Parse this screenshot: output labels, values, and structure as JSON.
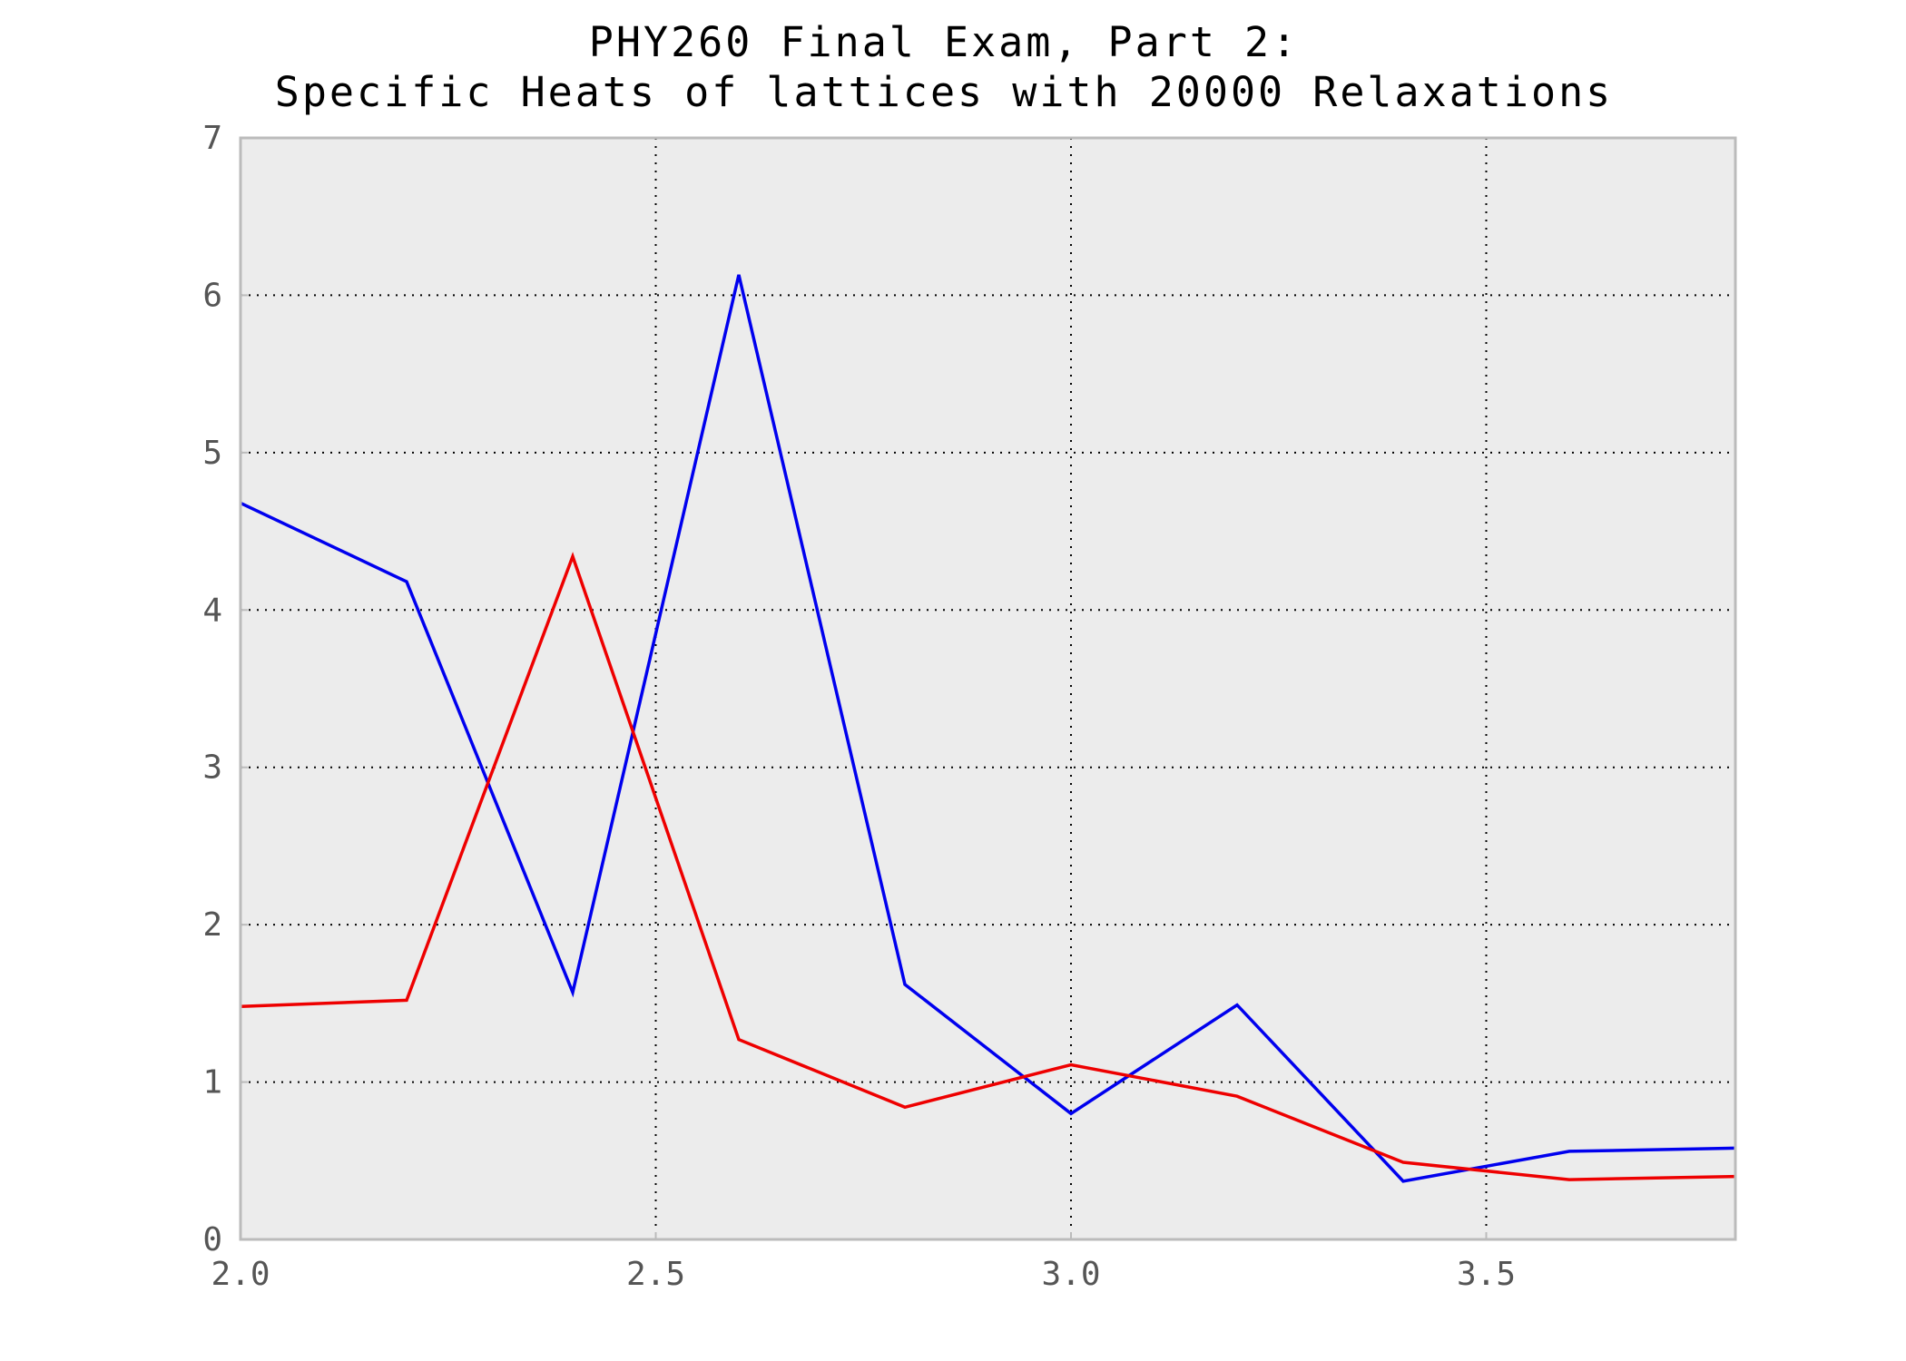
{
  "chart_data": {
    "type": "line",
    "title_lines": [
      "PHY260 Final Exam, Part 2:",
      "Specific Heats of lattices with 20000 Relaxations"
    ],
    "xlabel": "",
    "ylabel": "",
    "xlim": [
      2.0,
      3.8
    ],
    "ylim": [
      0,
      7
    ],
    "x_ticks": [
      2.0,
      2.5,
      3.0,
      3.5
    ],
    "x_tick_labels": [
      "2.0",
      "2.5",
      "3.0",
      "3.5"
    ],
    "y_ticks": [
      0,
      1,
      2,
      3,
      4,
      5,
      6,
      7
    ],
    "y_tick_labels": [
      "0",
      "1",
      "2",
      "3",
      "4",
      "5",
      "6",
      "7"
    ],
    "grid": true,
    "background_color": "#ececec",
    "x": [
      2.0,
      2.2,
      2.4,
      2.6,
      2.8,
      3.0,
      3.2,
      3.4,
      3.6,
      3.8
    ],
    "series": [
      {
        "color": "#0000ee",
        "values": [
          4.68,
          4.18,
          1.57,
          6.13,
          1.62,
          0.8,
          1.49,
          0.37,
          0.56,
          0.58
        ]
      },
      {
        "color": "#ee0000",
        "values": [
          1.48,
          1.52,
          4.34,
          1.27,
          0.84,
          1.11,
          0.91,
          0.49,
          0.38,
          0.4
        ]
      }
    ]
  }
}
